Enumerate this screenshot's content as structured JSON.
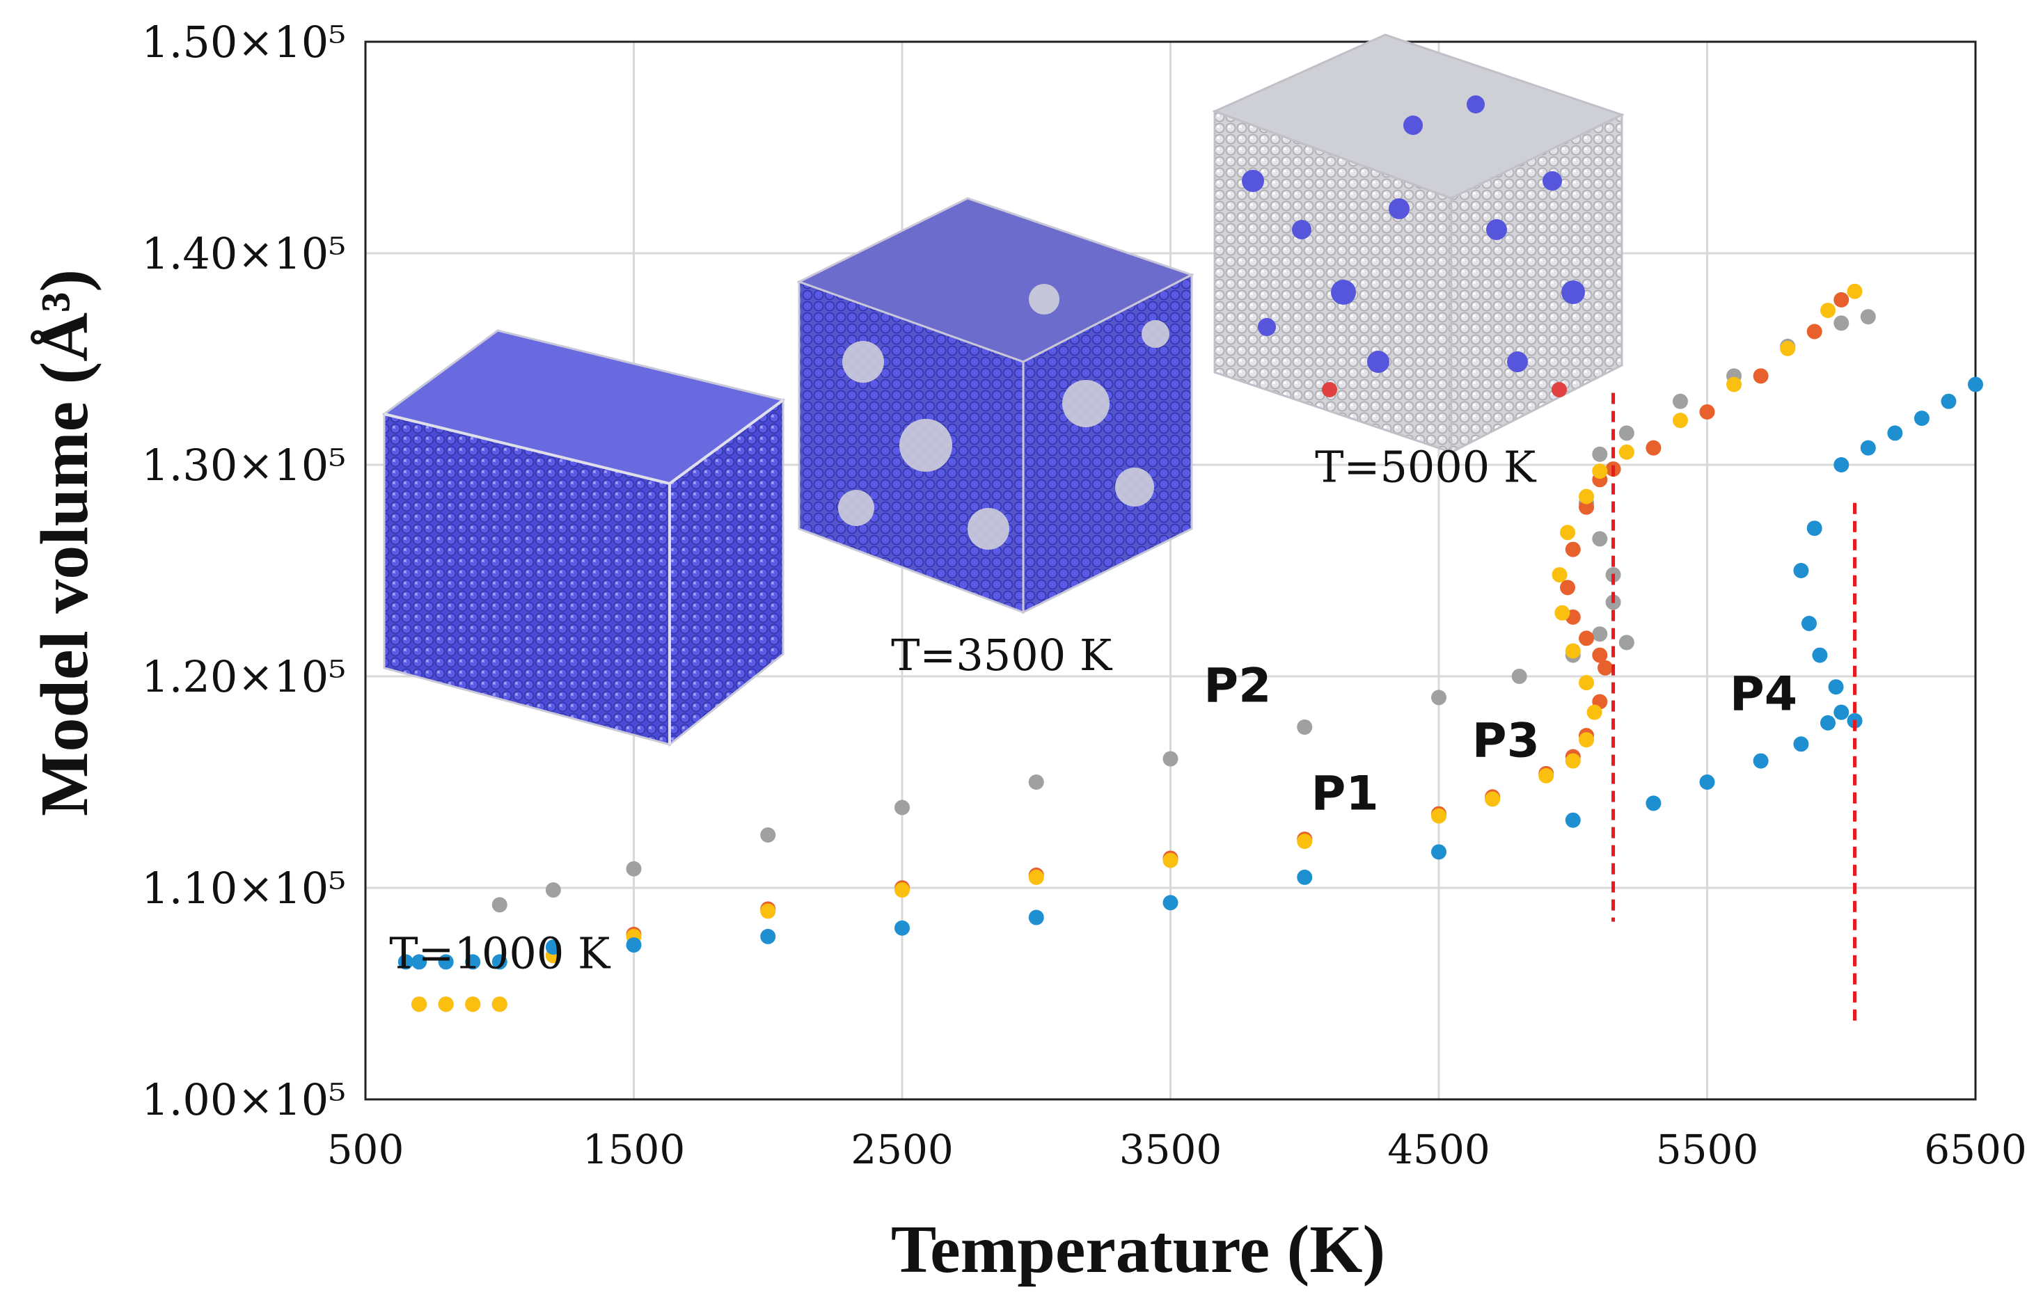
{
  "chart_data": {
    "type": "scatter",
    "xlabel": "Temperature (K)",
    "ylabel": "Model volume (Å³)",
    "xlim": [
      500,
      6500
    ],
    "ylim": [
      100000,
      150000
    ],
    "x_ticks": [
      500,
      1500,
      2500,
      3500,
      4500,
      5500,
      6500
    ],
    "x_tick_labels": [
      "500",
      "1500",
      "2500",
      "3500",
      "4500",
      "5500",
      "6500"
    ],
    "y_ticks": [
      100000,
      110000,
      120000,
      130000,
      140000,
      150000
    ],
    "y_tick_labels": [
      "1.00×10⁵",
      "1.10×10⁵",
      "1.20×10⁵",
      "1.30×10⁵",
      "1.40×10⁵",
      "1.50×10⁵"
    ],
    "grid": true,
    "series": [
      {
        "name": "P1",
        "color": "#e8602c",
        "label_position": [
          4150,
          113700
        ],
        "x": [
          700,
          800,
          900,
          1000,
          1200,
          1500,
          2000,
          2500,
          3000,
          3500,
          4000,
          4500,
          4700,
          4900,
          5000,
          5050,
          5100,
          5120,
          5100,
          5050,
          5000,
          4980,
          5000,
          5050,
          5100,
          5150,
          5300,
          5500,
          5700,
          5900,
          6000
        ],
        "values": [
          104500,
          104500,
          104500,
          104500,
          106800,
          107800,
          109000,
          110000,
          110600,
          111400,
          112300,
          113500,
          114300,
          115400,
          116200,
          117200,
          118800,
          120400,
          121000,
          121800,
          122800,
          124200,
          126000,
          128000,
          129300,
          129800,
          130800,
          132500,
          134200,
          136300,
          137800
        ]
      },
      {
        "name": "P2",
        "color": "#a0a0a0",
        "label_position": [
          3750,
          118800
        ],
        "x": [
          1000,
          1200,
          1500,
          2000,
          2500,
          3000,
          3500,
          4000,
          4500,
          4800,
          5000,
          5100,
          5150,
          5200,
          5150,
          5100,
          5050,
          5100,
          5200,
          5400,
          5600,
          5800,
          6000,
          6100
        ],
        "values": [
          109200,
          109900,
          110900,
          112500,
          113800,
          115000,
          116100,
          117600,
          119000,
          120000,
          121000,
          122000,
          123500,
          121600,
          124800,
          126500,
          128200,
          130500,
          131500,
          133000,
          134200,
          135600,
          136700,
          137000
        ]
      },
      {
        "name": "P3",
        "color": "#fbbf0f",
        "label_position": [
          4750,
          116200
        ],
        "x": [
          700,
          800,
          900,
          1000,
          1200,
          1500,
          2000,
          2500,
          3000,
          3500,
          4000,
          4500,
          4700,
          4900,
          5000,
          5050,
          5080,
          5050,
          5000,
          4960,
          4950,
          4980,
          5050,
          5100,
          5200,
          5400,
          5600,
          5800,
          5950,
          6050
        ],
        "values": [
          104500,
          104500,
          104500,
          104500,
          106800,
          107700,
          108900,
          109900,
          110500,
          111300,
          112200,
          113400,
          114200,
          115300,
          116000,
          117000,
          118300,
          119700,
          121200,
          123000,
          124800,
          126800,
          128500,
          129700,
          130600,
          132100,
          133800,
          135500,
          137300,
          138200
        ]
      },
      {
        "name": "P4",
        "color": "#1e8fd0",
        "label_position": [
          5710,
          118400
        ],
        "x": [
          650,
          700,
          800,
          900,
          1000,
          1200,
          1500,
          2000,
          2500,
          3000,
          3500,
          4000,
          4500,
          5000,
          5300,
          5500,
          5700,
          5850,
          5950,
          6000,
          6050,
          5980,
          5920,
          5880,
          5850,
          5900,
          6000,
          6100,
          6200,
          6300,
          6400,
          6500
        ],
        "values": [
          106500,
          106500,
          106500,
          106500,
          106500,
          107200,
          107300,
          107700,
          108100,
          108600,
          109300,
          110500,
          111700,
          113200,
          114000,
          115000,
          116000,
          116800,
          117800,
          118300,
          117900,
          119500,
          121000,
          122500,
          125000,
          127000,
          130000,
          130800,
          131500,
          132200,
          133000,
          133800
        ]
      }
    ],
    "annotations": {
      "vertical_dashed_lines": [
        {
          "x": 5150,
          "y_range": [
            108400,
            133400
          ],
          "color": "#e8191e"
        },
        {
          "x": 6050,
          "y_range": [
            103400,
            128200
          ],
          "color": "#e8191e"
        }
      ],
      "insets": [
        {
          "label": "T=1000 K",
          "label_position": [
            1000,
            106200
          ]
        },
        {
          "label": "T=3500 K",
          "label_position": [
            2870,
            120300
          ]
        },
        {
          "label": "T=5000 K",
          "label_position": [
            4450,
            129200
          ]
        }
      ]
    }
  }
}
